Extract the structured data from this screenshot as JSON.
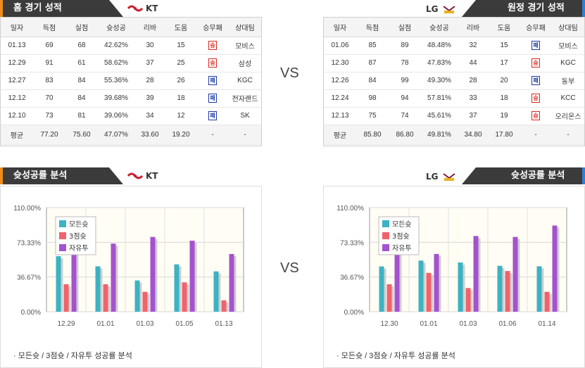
{
  "home": {
    "header": "홈 경기 성적",
    "team": "KT",
    "columns": [
      "일자",
      "득점",
      "실점",
      "슛성공",
      "리바",
      "도움",
      "승무패",
      "상대팀"
    ],
    "rows": [
      {
        "date": "01.13",
        "pts": "69",
        "opp": "68",
        "fg": "42.62%",
        "reb": "30",
        "ast": "15",
        "result": "승",
        "team": "모비스"
      },
      {
        "date": "12.29",
        "pts": "91",
        "opp": "61",
        "fg": "58.62%",
        "reb": "37",
        "ast": "25",
        "result": "승",
        "team": "삼성"
      },
      {
        "date": "12.27",
        "pts": "83",
        "opp": "84",
        "fg": "55.36%",
        "reb": "28",
        "ast": "26",
        "result": "패",
        "team": "KGC"
      },
      {
        "date": "12.12",
        "pts": "70",
        "opp": "84",
        "fg": "39.68%",
        "reb": "39",
        "ast": "18",
        "result": "패",
        "team": "전자랜드"
      },
      {
        "date": "12.10",
        "pts": "73",
        "opp": "81",
        "fg": "39.06%",
        "reb": "34",
        "ast": "12",
        "result": "패",
        "team": "SK"
      }
    ],
    "avg": {
      "label": "평균",
      "pts": "77.20",
      "opp": "75.60",
      "fg": "47.07%",
      "reb": "33.60",
      "ast": "19.20",
      "result": "-",
      "team": "-"
    }
  },
  "away": {
    "header": "원정 경기 성적",
    "team": "LG",
    "columns": [
      "일자",
      "득점",
      "실점",
      "슛성공",
      "리바",
      "도움",
      "승무패",
      "상대팀"
    ],
    "rows": [
      {
        "date": "01.06",
        "pts": "85",
        "opp": "89",
        "fg": "48.48%",
        "reb": "32",
        "ast": "15",
        "result": "패",
        "team": "모비스"
      },
      {
        "date": "12.30",
        "pts": "87",
        "opp": "78",
        "fg": "47.83%",
        "reb": "44",
        "ast": "17",
        "result": "승",
        "team": "KGC"
      },
      {
        "date": "12.26",
        "pts": "84",
        "opp": "99",
        "fg": "49.30%",
        "reb": "28",
        "ast": "20",
        "result": "패",
        "team": "동부"
      },
      {
        "date": "12.24",
        "pts": "98",
        "opp": "94",
        "fg": "57.81%",
        "reb": "33",
        "ast": "18",
        "result": "승",
        "team": "KCC"
      },
      {
        "date": "12.13",
        "pts": "75",
        "opp": "74",
        "fg": "45.61%",
        "reb": "37",
        "ast": "19",
        "result": "승",
        "team": "오리온스"
      }
    ],
    "avg": {
      "label": "평균",
      "pts": "85.80",
      "opp": "86.80",
      "fg": "49.81%",
      "reb": "34.80",
      "ast": "17.80",
      "result": "-",
      "team": "-"
    }
  },
  "vs_label": "VS",
  "analysis_header": "슛성공률 분석",
  "note": "·  모든슛 / 3점슛 / 자유투 성공률 분석",
  "colors": {
    "all": "#3cb3c3",
    "three": "#f0636c",
    "ft": "#a552cf",
    "win": "#d9281e",
    "loss": "#1c3aa6",
    "kt_stripe": "#f28c18",
    "lg_stripe": "#2f7fd6"
  },
  "chart_data": [
    {
      "type": "bar",
      "team": "KT",
      "categories": [
        "12.29",
        "01.01",
        "01.03",
        "01.05",
        "01.13"
      ],
      "ytick_labels": [
        "110.00%",
        "73.33%",
        "36.67%",
        "0.00%"
      ],
      "ylim": [
        0,
        110
      ],
      "series": [
        {
          "name": "모든슛",
          "values": [
            58.6,
            48,
            33,
            50,
            42.6
          ]
        },
        {
          "name": "3점슛",
          "values": [
            29,
            29,
            21,
            31,
            12
          ]
        },
        {
          "name": "자유투",
          "values": [
            69,
            72,
            79,
            75,
            61
          ]
        }
      ]
    },
    {
      "type": "bar",
      "team": "LG",
      "categories": [
        "12.30",
        "01.01",
        "01.03",
        "01.06",
        "01.14"
      ],
      "ytick_labels": [
        "110.00%",
        "73.33%",
        "36.67%",
        "0.00%"
      ],
      "ylim": [
        0,
        110
      ],
      "series": [
        {
          "name": "모든슛",
          "values": [
            47.8,
            54,
            52,
            48.5,
            48
          ]
        },
        {
          "name": "3점슛",
          "values": [
            29,
            41,
            25,
            43,
            21
          ]
        },
        {
          "name": "자유투",
          "values": [
            73,
            61,
            80,
            79,
            91
          ]
        }
      ]
    }
  ]
}
